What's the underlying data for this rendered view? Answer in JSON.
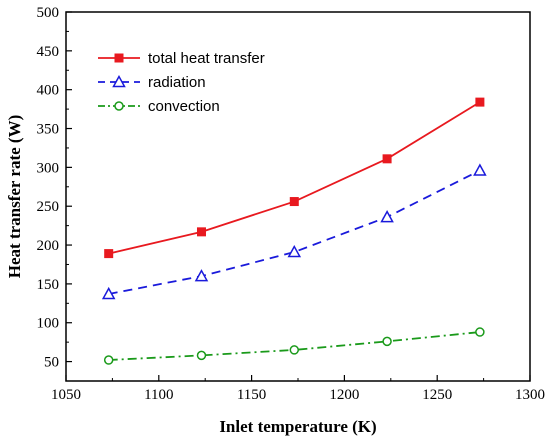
{
  "chart_data": {
    "type": "line",
    "title": "",
    "xlabel": "Inlet temperature (K)",
    "ylabel": "Heat transfer rate (W)",
    "xlim": [
      1050,
      1300
    ],
    "ylim": [
      25,
      500
    ],
    "xticks": [
      1050,
      1100,
      1150,
      1200,
      1250,
      1300
    ],
    "yticks": [
      50,
      100,
      150,
      200,
      250,
      300,
      350,
      400,
      450,
      500
    ],
    "grid": false,
    "legend_position": "top-left",
    "x": [
      1073,
      1123,
      1173,
      1223,
      1273
    ],
    "series": [
      {
        "name": "total heat transfer",
        "values": [
          189,
          217,
          256,
          311,
          384
        ],
        "color": "#e8191f",
        "marker": "square",
        "line": "solid"
      },
      {
        "name": "radiation",
        "values": [
          137,
          160,
          191,
          236,
          296
        ],
        "color": "#1a1adb",
        "marker": "triangle",
        "line": "dash"
      },
      {
        "name": "convection",
        "values": [
          52,
          58,
          65,
          76,
          88
        ],
        "color": "#1a9a1a",
        "marker": "circle",
        "line": "dashdot"
      }
    ]
  }
}
